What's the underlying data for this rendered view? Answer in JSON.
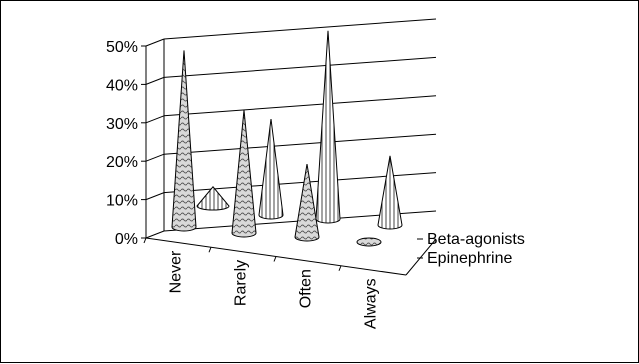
{
  "chart_data": {
    "type": "bar",
    "style": "3d-cone",
    "categories": [
      "Never",
      "Rarely",
      "Often",
      "Always"
    ],
    "series": [
      {
        "name": "Epinephrine",
        "values": [
          0.46,
          0.32,
          0.19,
          0.0
        ],
        "pattern": "dots"
      },
      {
        "name": "Beta-agonists",
        "values": [
          0.05,
          0.25,
          0.49,
          0.18
        ],
        "pattern": "vertical-lines"
      }
    ],
    "yticks": [
      "0%",
      "10%",
      "20%",
      "30%",
      "40%",
      "50%"
    ],
    "ylim": [
      0,
      0.5
    ],
    "grid": true,
    "title": "",
    "xlabel": "",
    "ylabel": ""
  }
}
